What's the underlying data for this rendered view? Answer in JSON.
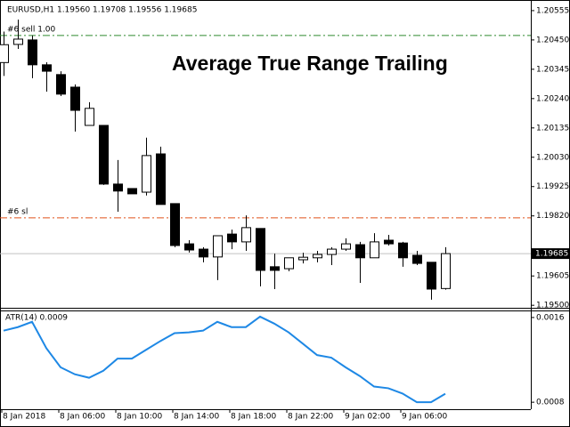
{
  "chart_data": [
    {
      "type": "candlestick",
      "header": "EURUSD,H1  1.19560 1.19708 1.19556 1.19685",
      "title": "Average True Range Trailing",
      "categories": [
        "8 Jan 2018",
        null,
        null,
        null,
        "8 Jan 06:00",
        null,
        null,
        null,
        "8 Jan 10:00",
        null,
        null,
        null,
        "8 Jan 14:00",
        null,
        null,
        null,
        "8 Jan 18:00",
        null,
        null,
        null,
        "8 Jan 22:00",
        null,
        null,
        null,
        "9 Jan 02:00",
        null,
        null,
        null,
        "9 Jan 06:00",
        null,
        null,
        null
      ],
      "open": [
        1.20369,
        1.20434,
        1.2045,
        1.20361,
        1.20326,
        1.20281,
        1.20144,
        1.20144,
        1.19934,
        1.19918,
        1.19905,
        1.20042,
        1.19864,
        1.1972,
        1.19701,
        1.19673,
        1.19755,
        1.19727,
        1.19775,
        1.19638,
        1.19631,
        1.19663,
        1.1967,
        1.19682,
        1.19701,
        1.19717,
        1.1967,
        1.19733,
        1.19723,
        1.19679,
        1.19654,
        1.1956
      ],
      "high": [
        1.2048,
        1.20523,
        1.20466,
        1.2037,
        1.20338,
        1.20291,
        1.20227,
        1.20144,
        1.2002,
        1.19918,
        1.201,
        1.20068,
        1.19864,
        1.19733,
        1.19708,
        1.19749,
        1.19771,
        1.19822,
        1.19775,
        1.19685,
        1.1967,
        1.19688,
        1.19695,
        1.19708,
        1.1974,
        1.19727,
        1.19758,
        1.19752,
        1.19727,
        1.19695,
        1.19654,
        1.19708
      ],
      "low": [
        1.20321,
        1.20418,
        1.20313,
        1.20265,
        1.20249,
        1.20122,
        1.20144,
        1.19931,
        1.19835,
        1.19899,
        1.19893,
        1.19861,
        1.19708,
        1.19689,
        1.19654,
        1.1959,
        1.19701,
        1.19695,
        1.19568,
        1.19558,
        1.19622,
        1.1965,
        1.19654,
        1.19644,
        1.19695,
        1.1958,
        1.1967,
        1.19714,
        1.19638,
        1.19644,
        1.1952,
        1.19556
      ],
      "close": [
        1.20433,
        1.20453,
        1.20361,
        1.20338,
        1.20256,
        1.20198,
        1.20205,
        1.19934,
        1.19909,
        1.19899,
        1.20036,
        1.19861,
        1.19714,
        1.19698,
        1.19673,
        1.19749,
        1.19727,
        1.19778,
        1.19625,
        1.19625,
        1.1967,
        1.19672,
        1.19682,
        1.19701,
        1.1972,
        1.1967,
        1.19727,
        1.1972,
        1.1967,
        1.1965,
        1.19558,
        1.19685
      ],
      "up_color": "#ffffff",
      "down_color": "#000000",
      "ylim": [
        1.19491,
        1.20593
      ],
      "yticks": [
        1.20555,
        {
          "value": 1.2045,
          "label": "1.20450"
        },
        1.20345,
        {
          "value": 1.2024,
          "label": "1.20240"
        },
        1.20135,
        {
          "value": 1.2003,
          "label": "1.20030"
        },
        1.19925,
        {
          "value": 1.1982,
          "label": "1.19820"
        },
        1.19605,
        {
          "value": 1.195,
          "label": "1.19500"
        }
      ],
      "annotations": [
        {
          "text": "#6 sell 1.00",
          "value": 1.20466,
          "color": "#2e8b2e"
        },
        {
          "text": "#6 sl",
          "value": 1.19813,
          "color": "#e0501a"
        }
      ]
    },
    {
      "type": "line",
      "title": "ATR(14) 0.0009",
      "values": [
        0.001476,
        0.001509,
        0.001559,
        0.001311,
        0.00113,
        0.001064,
        0.001031,
        0.001097,
        0.001212,
        0.001212,
        0.001295,
        0.001377,
        0.001452,
        0.00146,
        0.001476,
        0.001559,
        0.001509,
        0.001509,
        0.001608,
        0.001542,
        0.00146,
        0.001353,
        0.001245,
        0.001221,
        0.00113,
        0.001047,
        0.000948,
        0.000932,
        0.000882,
        0.0008,
        0.0008,
        0.00088
      ],
      "color": "#1e88e5",
      "ylim": [
        0.000734,
        0.001658
      ],
      "yticks": [
        0.0016,
        0.0008
      ]
    }
  ]
}
